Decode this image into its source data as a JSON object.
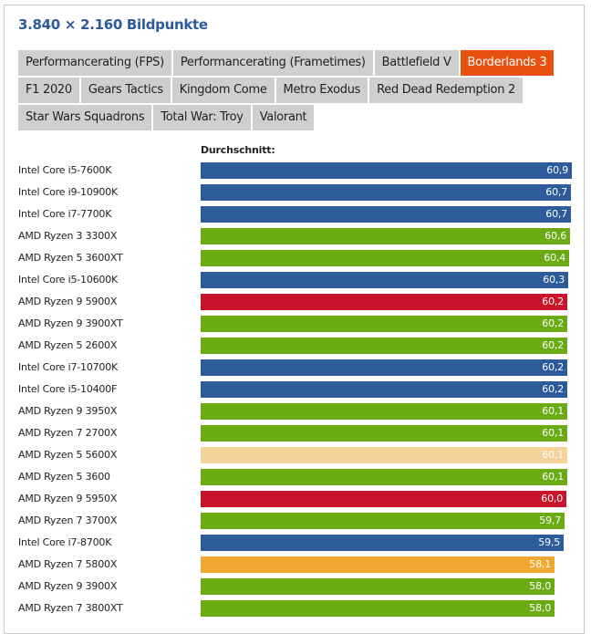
{
  "title": "3.840 × 2.160 Bildpunkte",
  "tabs": [
    [
      {
        "label": "Performancerating (FPS)",
        "active": false
      },
      {
        "label": "Performancerating (Frametimes)",
        "active": false
      },
      {
        "label": "Battlefield V",
        "active": false
      },
      {
        "label": "Borderlands 3",
        "active": true
      }
    ],
    [
      {
        "label": "F1 2020",
        "active": false
      },
      {
        "label": "Gears Tactics",
        "active": false
      },
      {
        "label": "Kingdom Come",
        "active": false
      },
      {
        "label": "Metro Exodus",
        "active": false
      },
      {
        "label": "Red Dead Redemption 2",
        "active": false
      }
    ],
    [
      {
        "label": "Star Wars Squadrons",
        "active": false
      },
      {
        "label": "Total War: Troy",
        "active": false
      },
      {
        "label": "Valorant",
        "active": false
      }
    ]
  ],
  "colors": {
    "intel": "#2d5b9b",
    "amd": "#6aab14",
    "ryzen5000_9": "#c8142a",
    "ryzen5000_5": "#f5d29a",
    "ryzen5000_7": "#f0a830",
    "active_tab": "#e8500f",
    "tab": "#cfcfcf",
    "title": "#2c5a9a"
  },
  "chart_data": {
    "type": "bar",
    "orientation": "horizontal",
    "title": "3.840 × 2.160 Bildpunkte",
    "subtitle": "Borderlands 3",
    "series_label": "Durchschnitt:",
    "xlabel": "",
    "ylabel": "",
    "grid": false,
    "legend": null,
    "categories": [
      "Intel Core i5-7600K",
      "Intel Core i9-10900K",
      "Intel Core i7-7700K",
      "AMD Ryzen 3 3300X",
      "AMD Ryzen 5 3600XT",
      "Intel Core i5-10600K",
      "AMD Ryzen 9 5900X",
      "AMD Ryzen 9 3900XT",
      "AMD Ryzen 5 2600X",
      "Intel Core i7-10700K",
      "Intel Core i5-10400F",
      "AMD Ryzen 9 3950X",
      "AMD Ryzen 7 2700X",
      "AMD Ryzen 5 5600X",
      "AMD Ryzen 5 3600",
      "AMD Ryzen 9 5950X",
      "AMD Ryzen 7 3700X",
      "Intel Core i7-8700K",
      "AMD Ryzen 7 5800X",
      "AMD Ryzen 9 3900X",
      "AMD Ryzen 7 3800XT"
    ],
    "values": [
      60.9,
      60.7,
      60.7,
      60.6,
      60.4,
      60.3,
      60.2,
      60.2,
      60.2,
      60.2,
      60.2,
      60.1,
      60.1,
      60.1,
      60.1,
      60.0,
      59.7,
      59.5,
      58.1,
      58.0,
      58.0
    ],
    "value_labels": [
      "60,9",
      "60,7",
      "60,7",
      "60,6",
      "60,4",
      "60,3",
      "60,2",
      "60,2",
      "60,2",
      "60,2",
      "60,2",
      "60,1",
      "60,1",
      "60,1",
      "60,1",
      "60,0",
      "59,7",
      "59,5",
      "58,1",
      "58,0",
      "58,0"
    ],
    "bar_colors": [
      "#2d5b9b",
      "#2d5b9b",
      "#2d5b9b",
      "#6aab14",
      "#6aab14",
      "#2d5b9b",
      "#c8142a",
      "#6aab14",
      "#6aab14",
      "#2d5b9b",
      "#2d5b9b",
      "#6aab14",
      "#6aab14",
      "#f5d29a",
      "#6aab14",
      "#c8142a",
      "#6aab14",
      "#2d5b9b",
      "#f0a830",
      "#6aab14",
      "#6aab14"
    ],
    "xlim": [
      0,
      60.9
    ]
  }
}
